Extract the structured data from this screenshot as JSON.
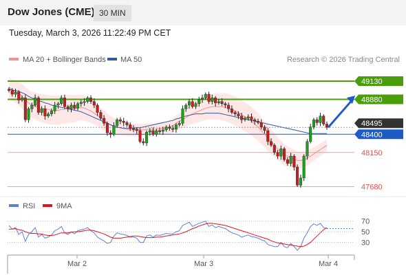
{
  "header": {
    "title": "Dow Jones (CME)",
    "timeframe": "30 MIN",
    "datetime": "Tuesday, March 3, 2026 11:22:49 PM CET"
  },
  "legend": {
    "items": [
      {
        "label": "MA 20 + Bollinger Bands",
        "color": "#f4908f"
      },
      {
        "label": "MA 50",
        "color": "#2f5a9e"
      }
    ],
    "copyright": "Research © 2026 Trading Central"
  },
  "rsi_legend": {
    "items": [
      {
        "label": "RSI",
        "color": "#5b7fd6"
      },
      {
        "label": "9MA",
        "color": "#e8101a"
      }
    ]
  },
  "chart_data": {
    "type": "candlestick",
    "y_range": [
      47600,
      49300
    ],
    "x_ticks": [
      "Mar 2",
      "Mar 3",
      "Mar 4"
    ],
    "levels": [
      {
        "value": 49130,
        "label": "49130",
        "type": "resistance",
        "color": "#4a9e0c"
      },
      {
        "value": 48880,
        "label": "48880",
        "type": "resistance",
        "color": "#4a9e0c"
      },
      {
        "value": 48495,
        "label": "48495",
        "type": "last",
        "color": "#333333"
      },
      {
        "value": 48400,
        "label": "48400",
        "type": "pivot",
        "color": "#1e5bc6"
      },
      {
        "value": 48150,
        "label": "48150",
        "type": "support",
        "color": "#e05050"
      },
      {
        "value": 47680,
        "label": "47680",
        "type": "support",
        "color": "#e05050"
      }
    ],
    "closes": [
      49000,
      48950,
      48980,
      48870,
      48900,
      48600,
      48750,
      48800,
      48900,
      48700,
      48750,
      48650,
      48680,
      48720,
      48800,
      48820,
      48900,
      48780,
      48750,
      48800,
      48760,
      48820,
      48840,
      48850,
      48900,
      48850,
      48800,
      48700,
      48620,
      48550,
      48420,
      48400,
      48520,
      48600,
      48580,
      48560,
      48530,
      48480,
      48470,
      48450,
      48300,
      48280,
      48430,
      48450,
      48400,
      48450,
      48440,
      48460,
      48500,
      48480,
      48470,
      48530,
      48550,
      48750,
      48800,
      48850,
      48780,
      48820,
      48880,
      48900,
      48950,
      48850,
      48900,
      48830,
      48850,
      48820,
      48800,
      48750,
      48700,
      48680,
      48650,
      48600,
      48620,
      48640,
      48600,
      48580,
      48560,
      48500,
      48450,
      48300,
      48250,
      48150,
      48100,
      48200,
      48050,
      48000,
      48100,
      47950,
      47700,
      47800,
      48100,
      48300,
      48500,
      48600,
      48560,
      48650,
      48540,
      48495
    ],
    "ma20": [
      49050,
      49010,
      48980,
      48960,
      48920,
      48880,
      48830,
      48800,
      48790,
      48770,
      48760,
      48750,
      48740,
      48730,
      48730,
      48730,
      48740,
      48740,
      48750,
      48750,
      48750,
      48760,
      48770,
      48760,
      48740,
      48720,
      48690,
      48660,
      48620,
      48590,
      48560,
      48530,
      48510,
      48500,
      48490,
      48480,
      48470,
      48460,
      48460,
      48460,
      48460,
      48460,
      48470,
      48470,
      48470,
      48470,
      48480,
      48480,
      48490,
      48500,
      48520,
      48550,
      48580,
      48600,
      48630,
      48660,
      48680,
      48700,
      48720,
      48740,
      48760,
      48770,
      48780,
      48780,
      48780,
      48780,
      48770,
      48760,
      48740,
      48720,
      48700,
      48670,
      48640,
      48610,
      48580,
      48540,
      48500,
      48450,
      48400,
      48350,
      48300,
      48250,
      48200,
      48160,
      48120,
      48100,
      48080,
      48060,
      48040,
      48040,
      48050,
      48070,
      48100,
      48130,
      48160,
      48190,
      48220,
      48250
    ],
    "ma50": [
      49020,
      49010,
      49000,
      48990,
      48970,
      48950,
      48920,
      48900,
      48880,
      48860,
      48850,
      48830,
      48820,
      48800,
      48790,
      48780,
      48770,
      48760,
      48750,
      48740,
      48730,
      48720,
      48710,
      48690,
      48670,
      48650,
      48630,
      48610,
      48590,
      48570,
      48550,
      48530,
      48510,
      48500,
      48490,
      48480,
      48480,
      48480,
      48480,
      48490,
      48490,
      48500,
      48510,
      48520,
      48530,
      48540,
      48550,
      48560,
      48570,
      48580,
      48590,
      48610,
      48620,
      48640,
      48650,
      48660,
      48670,
      48680,
      48680,
      48680,
      48690,
      48690,
      48690,
      48690,
      48690,
      48680,
      48670,
      48660,
      48650,
      48640,
      48630,
      48620,
      48610,
      48600,
      48590,
      48580,
      48570,
      48560,
      48550,
      48540,
      48530,
      48520,
      48510,
      48500,
      48490,
      48480,
      48470,
      48460,
      48450,
      48440,
      48430,
      48420,
      48410,
      48410,
      48410,
      48410,
      48410,
      48410
    ],
    "rsi": {
      "levels": [
        70,
        50,
        30
      ],
      "y_range": [
        10,
        80
      ],
      "values": [
        62,
        55,
        58,
        45,
        50,
        32,
        45,
        50,
        58,
        40,
        45,
        38,
        40,
        44,
        52,
        55,
        60,
        48,
        45,
        50,
        46,
        52,
        54,
        55,
        58,
        52,
        48,
        40,
        36,
        33,
        28,
        30,
        42,
        48,
        46,
        45,
        43,
        40,
        40,
        38,
        30,
        30,
        42,
        44,
        40,
        44,
        43,
        45,
        47,
        46,
        46,
        50,
        52,
        62,
        65,
        68,
        60,
        63,
        66,
        68,
        70,
        60,
        63,
        58,
        60,
        58,
        56,
        52,
        48,
        46,
        44,
        40,
        42,
        44,
        41,
        40,
        38,
        35,
        33,
        26,
        24,
        22,
        22,
        30,
        22,
        20,
        28,
        22,
        15,
        22,
        38,
        48,
        60,
        65,
        62,
        66,
        58,
        56
      ],
      "ma9": [
        55,
        55,
        56,
        54,
        53,
        50,
        48,
        47,
        47,
        46,
        46,
        44,
        43,
        43,
        44,
        46,
        48,
        48,
        48,
        49,
        50,
        50,
        51,
        52,
        53,
        53,
        52,
        50,
        48,
        46,
        43,
        40,
        38,
        38,
        38,
        39,
        40,
        41,
        42,
        42,
        41,
        40,
        39,
        39,
        39,
        40,
        40,
        41,
        42,
        43,
        44,
        45,
        46,
        48,
        50,
        53,
        56,
        58,
        61,
        63,
        65,
        66,
        66,
        65,
        64,
        63,
        62,
        60,
        58,
        56,
        54,
        52,
        50,
        48,
        46,
        44,
        42,
        40,
        38,
        36,
        33,
        31,
        29,
        28,
        27,
        26,
        25,
        24,
        23,
        22,
        23,
        26,
        30,
        36,
        42,
        48,
        54,
        58
      ]
    }
  }
}
